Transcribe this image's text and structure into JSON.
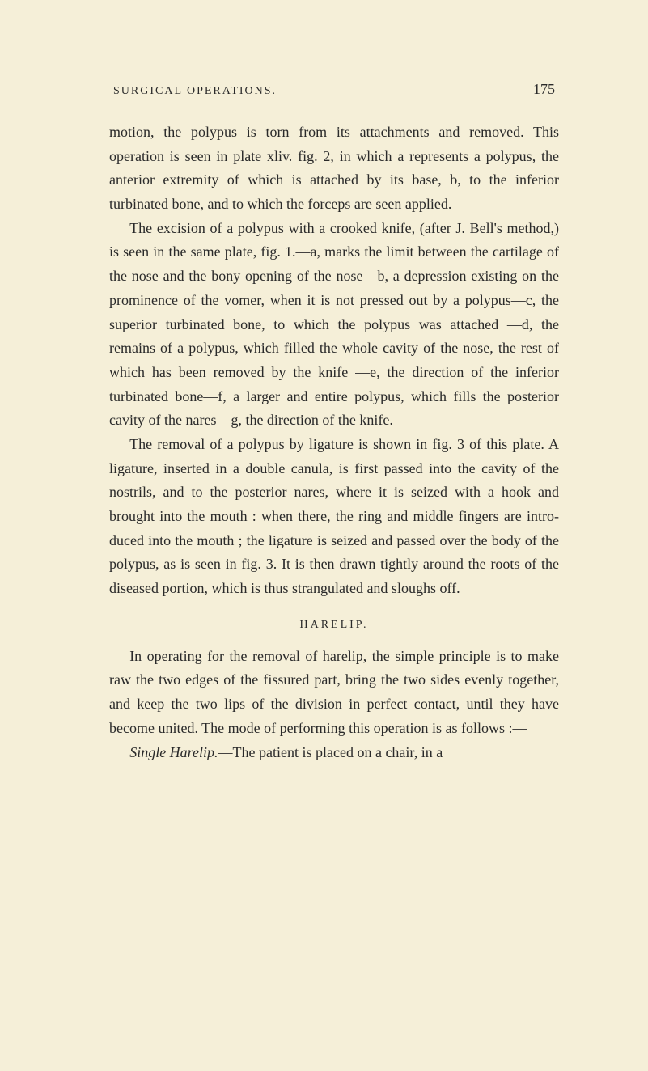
{
  "page": {
    "background_color": "#f5efd8",
    "text_color": "#2a2a2a",
    "font_family": "Georgia, 'Times New Roman', serif",
    "body_font_size": 18,
    "line_height": 1.65,
    "header_font_size": 14,
    "page_number_font_size": 18
  },
  "header": {
    "running_head": "SURGICAL OPERATIONS.",
    "page_number": "175"
  },
  "paragraphs": {
    "p1": "motion, the polypus is torn from its attachments and removed. This operation is seen in plate xliv. fig. 2, in which a repre­sents a polypus, the anterior extremity of which is attached by its base, b, to the inferior turbinated bone, and to which the forceps are seen applied.",
    "p2": "The excision of a polypus with a crooked knife, (after J. Bell's method,) is seen in the same plate, fig. 1.—a, marks the limit between the cartilage of the nose and the bony open­ing of the nose—b, a depression existing on the prominence of the vomer, when it is not pressed out by a polypus—c, the superior turbinated bone, to which the polypus was attached —d, the remains of a polypus, which filled the whole cavity of the nose, the rest of which has been removed by the knife —e, the direction of the inferior turbinated bone—f, a larger and entire polypus, which fills the posterior cavity of the nares—g, the direction of the knife.",
    "p3": "The removal of a polypus by ligature is shown in fig. 3 of this plate. A ligature, inserted in a double canula, is first passed into the cavity of the nostrils, and to the posterior nares, where it is seized with a hook and brought into the mouth : when there, the ring and middle fingers are intro­duced into the mouth ; the ligature is seized and passed over the body of the polypus, as is seen in fig. 3. It is then drawn tightly around the roots of the diseased portion, which is thus strangulated and sloughs off.",
    "section_head": "HARELIP.",
    "p4": "In operating for the removal of harelip, the simple prin­ciple is to make raw the two edges of the fissured part, bring the two sides evenly together, and keep the two lips of the division in perfect contact, until they have become united. The mode of performing this operation is as follows :—",
    "p5_prefix": "Single Harelip.",
    "p5_rest": "—The patient is placed on a chair, in a"
  }
}
